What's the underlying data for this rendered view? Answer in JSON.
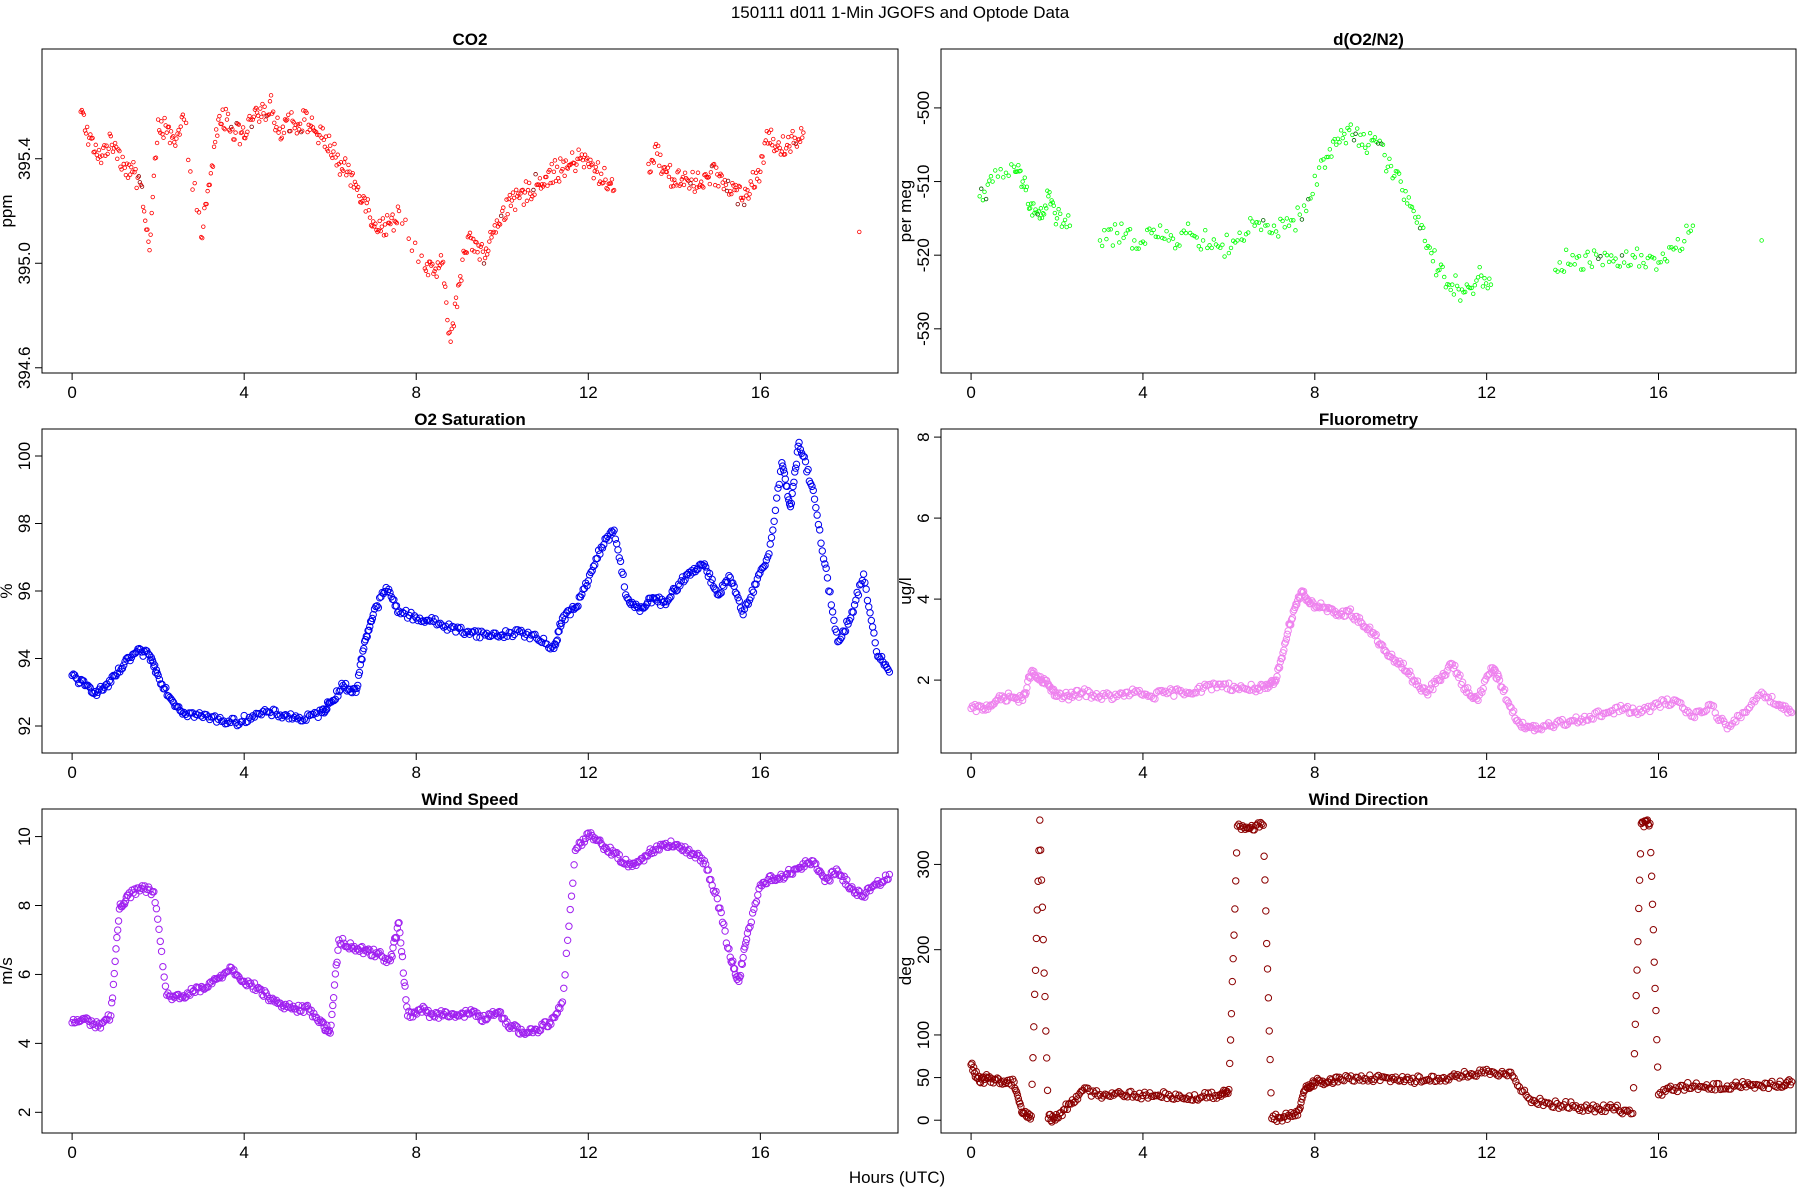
{
  "figure": {
    "title": "150111   d011   1-Min  JGOFS and Optode Data",
    "xlabel": "Hours (UTC)"
  },
  "chart_data": [
    {
      "id": "co2",
      "type": "scatter",
      "title": "CO2",
      "ylabel": "ppm",
      "xlim": [
        -0.7,
        19.2
      ],
      "ylim": [
        394.58,
        395.82
      ],
      "xticks": [
        0,
        4,
        8,
        12,
        16
      ],
      "yticks": [
        394.6,
        395.0,
        395.4
      ],
      "ytick_labels": [
        "394.6",
        "395.0",
        "395.4"
      ],
      "marker": "open-circle-small",
      "color": "#ff0000",
      "dark_color": "#8b0000",
      "series": [
        {
          "x": [
            0.2,
            0.4,
            0.6,
            0.8,
            1.0,
            1.2,
            1.4,
            1.6,
            1.8,
            2.0,
            2.2,
            2.4,
            2.6,
            3.0,
            3.2,
            3.4,
            3.6,
            3.8,
            4.0,
            4.2,
            4.4,
            4.6,
            4.8,
            5.0,
            5.2,
            5.4,
            5.6,
            5.8,
            6.0,
            6.2,
            6.4,
            6.6,
            6.8,
            7.0,
            7.2,
            7.4,
            7.6,
            8.2,
            8.4,
            8.6,
            8.8,
            9.0,
            9.2,
            9.4,
            9.6,
            9.8,
            10.0,
            10.2,
            10.4,
            10.6,
            10.8,
            11.0,
            11.2,
            11.4,
            11.6,
            11.8,
            12.0,
            12.2,
            12.4,
            12.6,
            13.4,
            13.6,
            13.8,
            14.0,
            14.2,
            14.4,
            14.6,
            14.8,
            15.0,
            15.2,
            15.4,
            15.6,
            15.8,
            16.0,
            16.2,
            16.4,
            16.6,
            16.8,
            17.0,
            18.3
          ],
          "y": [
            395.58,
            395.48,
            395.4,
            395.45,
            395.46,
            395.38,
            395.35,
            395.3,
            395.05,
            395.55,
            395.5,
            395.45,
            395.55,
            395.1,
            395.3,
            395.55,
            395.55,
            395.5,
            395.48,
            395.55,
            395.56,
            395.62,
            395.5,
            395.55,
            395.53,
            395.55,
            395.52,
            395.48,
            395.45,
            395.38,
            395.35,
            395.3,
            395.25,
            395.16,
            395.14,
            395.15,
            395.2,
            394.98,
            394.96,
            395.0,
            394.7,
            394.92,
            395.1,
            395.08,
            395.02,
            395.12,
            395.2,
            395.22,
            395.25,
            395.28,
            395.3,
            395.33,
            395.35,
            395.36,
            395.38,
            395.4,
            395.38,
            395.35,
            395.32,
            395.28,
            395.38,
            395.42,
            395.35,
            395.32,
            395.33,
            395.32,
            395.3,
            395.33,
            395.34,
            395.3,
            395.28,
            395.25,
            395.3,
            395.35,
            395.5,
            395.45,
            395.44,
            395.48,
            395.5,
            395.12
          ]
        }
      ]
    },
    {
      "id": "do2n2",
      "type": "scatter",
      "title": "d(O2/N2)",
      "ylabel": "per meg",
      "xlim": [
        -0.7,
        19.2
      ],
      "ylim": [
        -536,
        -492
      ],
      "xticks": [
        0,
        4,
        8,
        12,
        16
      ],
      "yticks": [
        -530,
        -520,
        -510,
        -500
      ],
      "ytick_labels": [
        "-530",
        "-520",
        "-510",
        "-500"
      ],
      "marker": "open-circle-small",
      "color": "#00ff00",
      "dark_color": "#006400",
      "series": [
        {
          "x": [
            0.2,
            0.5,
            1.0,
            1.2,
            1.4,
            1.6,
            1.8,
            2.0,
            2.3,
            3.0,
            3.4,
            3.8,
            4.2,
            4.6,
            5.0,
            5.4,
            5.8,
            6.2,
            6.6,
            7.0,
            7.4,
            7.8,
            8.2,
            8.5,
            8.8,
            9.1,
            9.4,
            9.7,
            10.0,
            10.3,
            10.6,
            10.9,
            11.2,
            11.5,
            11.8,
            12.1,
            13.6,
            14.0,
            14.4,
            14.8,
            15.2,
            15.6,
            16.0,
            16.4,
            16.8,
            18.4
          ],
          "y": [
            -512,
            -510,
            -508,
            -510,
            -513,
            -515,
            -512,
            -515,
            -516,
            -518,
            -517,
            -518,
            -517,
            -518,
            -517,
            -518,
            -519,
            -518,
            -516,
            -517,
            -516,
            -514,
            -507,
            -505,
            -503,
            -505,
            -504,
            -508,
            -510,
            -514,
            -519,
            -522,
            -524,
            -525,
            -523,
            -524,
            -522,
            -520,
            -521,
            -520,
            -521,
            -520,
            -521,
            -519,
            -516,
            -518
          ]
        }
      ]
    },
    {
      "id": "o2sat",
      "type": "scatter",
      "title": "O2 Saturation",
      "ylabel": "%",
      "xlim": [
        -0.7,
        19.2
      ],
      "ylim": [
        91.2,
        100.8
      ],
      "xticks": [
        0,
        4,
        8,
        12,
        16
      ],
      "yticks": [
        92,
        94,
        96,
        98,
        100
      ],
      "ytick_labels": [
        "92",
        "94",
        "96",
        "98",
        "100"
      ],
      "marker": "open-circle-large",
      "color": "#0000ee",
      "series": [
        {
          "x": [
            0.0,
            0.3,
            0.6,
            0.9,
            1.2,
            1.5,
            1.8,
            2.0,
            2.3,
            2.6,
            3.0,
            3.4,
            3.8,
            4.2,
            4.6,
            5.0,
            5.4,
            5.8,
            6.0,
            6.3,
            6.6,
            6.8,
            7.0,
            7.3,
            7.6,
            8.0,
            8.4,
            8.8,
            9.2,
            9.6,
            10.0,
            10.4,
            10.8,
            11.2,
            11.4,
            11.7,
            12.0,
            12.3,
            12.6,
            12.9,
            13.2,
            13.5,
            13.8,
            14.1,
            14.4,
            14.7,
            15.0,
            15.3,
            15.6,
            15.9,
            16.2,
            16.5,
            16.7,
            16.9,
            17.2,
            17.5,
            17.8,
            18.1,
            18.4,
            18.7,
            19.0
          ],
          "y": [
            93.5,
            93.2,
            93.0,
            93.3,
            93.8,
            94.2,
            94.1,
            93.5,
            92.8,
            92.4,
            92.3,
            92.2,
            92.1,
            92.3,
            92.4,
            92.3,
            92.2,
            92.4,
            92.7,
            93.2,
            93.0,
            94.5,
            95.3,
            96.1,
            95.4,
            95.2,
            95.1,
            94.9,
            94.8,
            94.7,
            94.7,
            94.8,
            94.6,
            94.3,
            95.2,
            95.5,
            96.3,
            97.3,
            97.8,
            95.8,
            95.4,
            95.8,
            95.6,
            96.2,
            96.6,
            96.8,
            95.9,
            96.4,
            95.3,
            96.2,
            97.1,
            99.8,
            98.5,
            100.4,
            99.1,
            96.8,
            94.5,
            95.2,
            96.5,
            94.2,
            93.6
          ]
        }
      ]
    },
    {
      "id": "fluor",
      "type": "scatter",
      "title": "Fluorometry",
      "ylabel": "ug/l",
      "xlim": [
        -0.7,
        19.2
      ],
      "ylim": [
        0.2,
        8.2
      ],
      "xticks": [
        0,
        4,
        8,
        12,
        16
      ],
      "yticks": [
        2,
        4,
        6,
        8
      ],
      "ytick_labels": [
        "2",
        "4",
        "6",
        "8"
      ],
      "marker": "open-circle-large",
      "color": "#ee82ee",
      "series": [
        {
          "x": [
            0.0,
            0.3,
            0.6,
            0.9,
            1.2,
            1.4,
            1.6,
            1.8,
            2.0,
            2.3,
            2.6,
            3.0,
            3.4,
            3.8,
            4.2,
            4.6,
            5.0,
            5.4,
            5.8,
            6.2,
            6.6,
            6.9,
            7.1,
            7.3,
            7.5,
            7.7,
            7.9,
            8.2,
            8.5,
            8.8,
            9.1,
            9.4,
            9.7,
            10.0,
            10.3,
            10.6,
            10.9,
            11.2,
            11.5,
            11.8,
            12.1,
            12.3,
            12.6,
            12.9,
            13.2,
            13.6,
            14.0,
            14.4,
            14.8,
            15.2,
            15.6,
            16.0,
            16.4,
            16.8,
            17.2,
            17.6,
            18.0,
            18.4,
            18.8,
            19.1
          ],
          "y": [
            1.3,
            1.3,
            1.5,
            1.6,
            1.5,
            2.2,
            2.0,
            1.9,
            1.6,
            1.6,
            1.7,
            1.6,
            1.6,
            1.7,
            1.6,
            1.7,
            1.7,
            1.8,
            1.9,
            1.8,
            1.8,
            1.8,
            2.0,
            2.9,
            3.7,
            4.2,
            3.9,
            3.8,
            3.6,
            3.7,
            3.4,
            3.1,
            2.6,
            2.4,
            2.0,
            1.7,
            2.0,
            2.4,
            1.8,
            1.5,
            2.3,
            2.0,
            1.2,
            0.8,
            0.8,
            0.9,
            1.0,
            1.1,
            1.2,
            1.3,
            1.2,
            1.4,
            1.5,
            1.1,
            1.4,
            0.8,
            1.2,
            1.7,
            1.4,
            1.2
          ]
        }
      ]
    },
    {
      "id": "windspeed",
      "type": "scatter",
      "title": "Wind Speed",
      "ylabel": "m/s",
      "xlim": [
        -0.7,
        19.2
      ],
      "ylim": [
        1.4,
        10.8
      ],
      "xticks": [
        0,
        4,
        8,
        12,
        16
      ],
      "yticks": [
        2,
        4,
        6,
        8,
        10
      ],
      "ytick_labels": [
        "2",
        "4",
        "6",
        "8",
        "10"
      ],
      "marker": "open-circle-large",
      "color": "#a020f0",
      "series": [
        {
          "x": [
            0.0,
            0.3,
            0.6,
            0.9,
            1.1,
            1.3,
            1.6,
            1.9,
            2.2,
            2.5,
            2.8,
            3.1,
            3.4,
            3.7,
            4.0,
            4.3,
            4.6,
            4.9,
            5.2,
            5.5,
            5.8,
            6.0,
            6.2,
            6.5,
            6.8,
            7.1,
            7.4,
            7.6,
            7.8,
            8.1,
            8.4,
            8.7,
            9.0,
            9.3,
            9.6,
            9.9,
            10.2,
            10.5,
            10.8,
            11.1,
            11.4,
            11.7,
            12.0,
            12.3,
            12.6,
            12.9,
            13.2,
            13.5,
            13.8,
            14.1,
            14.4,
            14.7,
            15.0,
            15.3,
            15.5,
            15.7,
            16.0,
            16.3,
            16.6,
            16.9,
            17.2,
            17.5,
            17.8,
            18.1,
            18.4,
            18.7,
            19.0
          ],
          "y": [
            4.6,
            4.7,
            4.5,
            4.8,
            7.9,
            8.3,
            8.5,
            8.4,
            5.4,
            5.3,
            5.5,
            5.6,
            5.9,
            6.2,
            5.8,
            5.6,
            5.3,
            5.1,
            5.0,
            5.0,
            4.6,
            4.3,
            7.0,
            6.8,
            6.7,
            6.6,
            6.4,
            7.5,
            4.8,
            5.0,
            4.8,
            4.9,
            4.8,
            4.9,
            4.7,
            4.9,
            4.5,
            4.3,
            4.4,
            4.6,
            5.2,
            9.6,
            10.1,
            9.8,
            9.5,
            9.2,
            9.3,
            9.6,
            9.8,
            9.7,
            9.5,
            9.3,
            8.2,
            6.5,
            5.8,
            7.2,
            8.6,
            8.8,
            8.9,
            9.1,
            9.3,
            8.7,
            9.0,
            8.5,
            8.3,
            8.6,
            8.9
          ]
        }
      ]
    },
    {
      "id": "winddir",
      "type": "scatter",
      "title": "Wind Direction",
      "ylabel": "deg",
      "xlim": [
        -0.7,
        19.2
      ],
      "ylim": [
        -15,
        365
      ],
      "xticks": [
        0,
        4,
        8,
        12,
        16
      ],
      "yticks": [
        0,
        50,
        100,
        200,
        300
      ],
      "ytick_labels": [
        "0",
        "50",
        "100",
        "200",
        "300"
      ],
      "marker": "open-circle-large",
      "color": "#8b0000",
      "series": [
        {
          "x": [
            0.0,
            0.2,
            0.4,
            0.7,
            1.0,
            1.2,
            1.4,
            1.6,
            1.8,
            2.0,
            2.3,
            2.6,
            3.0,
            3.4,
            3.8,
            4.2,
            4.6,
            5.0,
            5.4,
            5.8,
            6.0,
            6.2,
            6.5,
            6.8,
            7.0,
            7.3,
            7.6,
            7.8,
            8.0,
            8.3,
            8.6,
            9.0,
            9.4,
            9.8,
            10.2,
            10.6,
            11.0,
            11.4,
            11.8,
            12.2,
            12.6,
            13.0,
            13.4,
            13.8,
            14.2,
            14.6,
            15.0,
            15.4,
            15.6,
            15.8,
            16.0,
            16.4,
            16.8,
            17.2,
            17.6,
            18.0,
            18.4,
            18.8,
            19.1
          ],
          "y": [
            65,
            45,
            50,
            45,
            45,
            8,
            5,
            352,
            2,
            3,
            20,
            35,
            30,
            32,
            30,
            28,
            30,
            26,
            28,
            30,
            36,
            345,
            343,
            346,
            2,
            4,
            6,
            40,
            45,
            45,
            48,
            50,
            48,
            50,
            48,
            47,
            50,
            52,
            55,
            55,
            52,
            25,
            20,
            18,
            15,
            13,
            15,
            8,
            348,
            348,
            30,
            38,
            40,
            38,
            40,
            42,
            40,
            42,
            45
          ]
        }
      ]
    }
  ]
}
